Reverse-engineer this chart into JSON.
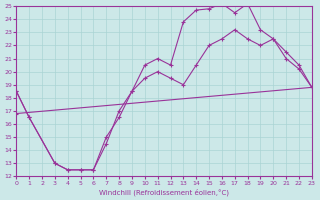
{
  "xlabel": "Windchill (Refroidissement éolien,°C)",
  "xlim": [
    0,
    23
  ],
  "ylim": [
    12,
    25
  ],
  "xticks": [
    0,
    1,
    2,
    3,
    4,
    5,
    6,
    7,
    8,
    9,
    10,
    11,
    12,
    13,
    14,
    15,
    16,
    17,
    18,
    19,
    20,
    21,
    22,
    23
  ],
  "yticks": [
    12,
    13,
    14,
    15,
    16,
    17,
    18,
    19,
    20,
    21,
    22,
    23,
    24,
    25
  ],
  "bg_color": "#cce8e8",
  "grid_color": "#aad4d4",
  "line_color": "#993399",
  "line1_x": [
    0,
    1,
    3,
    4,
    5,
    6,
    7,
    8,
    9,
    10,
    11,
    12,
    13,
    14,
    15,
    16,
    17,
    18,
    19,
    20,
    21,
    22,
    23
  ],
  "line1_y": [
    18.5,
    16.5,
    13.0,
    12.5,
    12.5,
    12.5,
    15.0,
    16.5,
    18.5,
    20.5,
    21.0,
    20.5,
    23.8,
    24.7,
    24.8,
    25.2,
    24.5,
    25.2,
    23.2,
    22.5,
    21.0,
    20.2,
    18.8
  ],
  "line2_x": [
    0,
    1,
    3,
    4,
    5,
    6,
    7,
    8,
    9,
    10,
    11,
    12,
    13,
    14,
    15,
    16,
    17,
    18,
    19,
    20,
    21,
    22,
    23
  ],
  "line2_y": [
    18.5,
    16.5,
    13.0,
    12.5,
    12.5,
    12.5,
    14.5,
    17.0,
    18.5,
    19.5,
    20.0,
    19.5,
    19.0,
    20.5,
    22.0,
    22.5,
    23.2,
    22.5,
    22.0,
    22.5,
    21.5,
    20.5,
    18.8
  ],
  "line3_x": [
    0,
    23
  ],
  "line3_y": [
    16.8,
    18.8
  ],
  "marker": "+"
}
